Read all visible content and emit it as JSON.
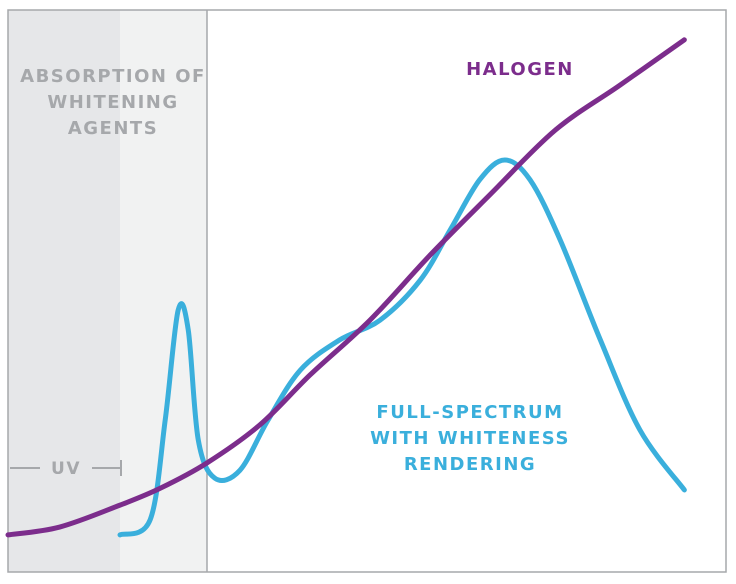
{
  "chart_data": {
    "type": "line",
    "annotations": {
      "absorption": "ABSORPTION OF WHITENING AGENTS",
      "uv": "UV"
    },
    "xlim": [
      0,
      100
    ],
    "ylim": [
      0,
      100
    ],
    "series": [
      {
        "name": "HALOGEN",
        "color": "#7c2d8c",
        "x": [
          0,
          7.2,
          15.6,
          21.2,
          27.7,
          35.1,
          42.1,
          50.4,
          58.8,
          67.1,
          76.2,
          85.2,
          94.2
        ],
        "values": [
          6.6,
          8.0,
          11.9,
          14.9,
          19.4,
          26.2,
          35.1,
          44.8,
          56.4,
          67.1,
          78.6,
          86.6,
          94.7
        ]
      },
      {
        "name": "FULL-SPECTRUM WITH WHITENESS RENDERING",
        "color": "#3aafdc",
        "x": [
          15.6,
          19.8,
          21.9,
          23.7,
          25.1,
          26.5,
          28.8,
          32.3,
          36.2,
          40.7,
          46.2,
          51.8,
          57.4,
          61.6,
          65.7,
          69.2,
          72.7,
          76.9,
          82.5,
          88.0,
          94.2
        ],
        "values": [
          6.6,
          9.3,
          27.1,
          46.6,
          43.1,
          23.5,
          16.7,
          18.1,
          27.0,
          35.9,
          41.3,
          44.8,
          51.9,
          60.9,
          69.8,
          73.3,
          69.8,
          59.1,
          41.3,
          25.3,
          14.6
        ]
      }
    ]
  }
}
